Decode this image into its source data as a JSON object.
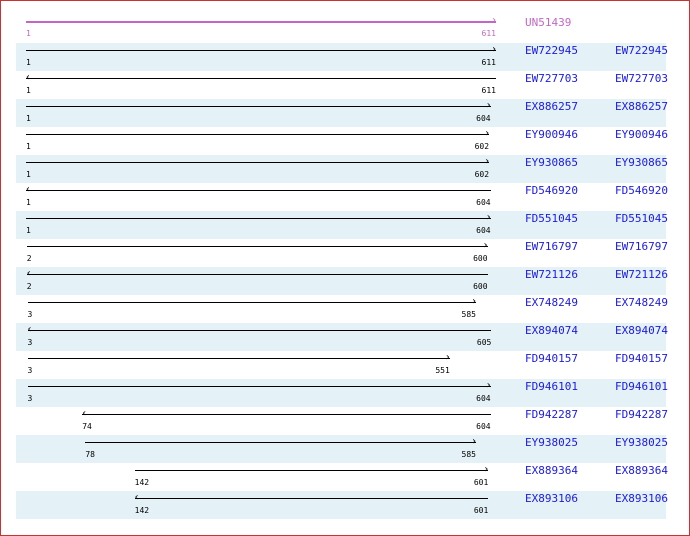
{
  "colors": {
    "query": "#c466c8",
    "link": "#1a1ae6",
    "shade": "#e4f1f6",
    "border": "#c83232"
  },
  "scale": {
    "min": 1,
    "max": 611
  },
  "query": {
    "name": "UN51439",
    "start": 1,
    "end": 611,
    "direction": "forward"
  },
  "hits": [
    {
      "name": "EW722945",
      "link": "EW722945",
      "start": 1,
      "end": 611,
      "direction": "forward"
    },
    {
      "name": "EW727703",
      "link": "EW727703",
      "start": 1,
      "end": 611,
      "direction": "reverse"
    },
    {
      "name": "EX886257",
      "link": "EX886257",
      "start": 1,
      "end": 604,
      "direction": "forward"
    },
    {
      "name": "EY900946",
      "link": "EY900946",
      "start": 1,
      "end": 602,
      "direction": "forward"
    },
    {
      "name": "EY930865",
      "link": "EY930865",
      "start": 1,
      "end": 602,
      "direction": "forward"
    },
    {
      "name": "FD546920",
      "link": "FD546920",
      "start": 1,
      "end": 604,
      "direction": "reverse"
    },
    {
      "name": "FD551045",
      "link": "FD551045",
      "start": 1,
      "end": 604,
      "direction": "forward"
    },
    {
      "name": "EW716797",
      "link": "EW716797",
      "start": 2,
      "end": 600,
      "direction": "forward"
    },
    {
      "name": "EW721126",
      "link": "EW721126",
      "start": 2,
      "end": 600,
      "direction": "reverse"
    },
    {
      "name": "EX748249",
      "link": "EX748249",
      "start": 3,
      "end": 585,
      "direction": "forward"
    },
    {
      "name": "EX894074",
      "link": "EX894074",
      "start": 3,
      "end": 605,
      "direction": "reverse"
    },
    {
      "name": "FD940157",
      "link": "FD940157",
      "start": 3,
      "end": 551,
      "direction": "forward"
    },
    {
      "name": "FD946101",
      "link": "FD946101",
      "start": 3,
      "end": 604,
      "direction": "forward"
    },
    {
      "name": "FD942287",
      "link": "FD942287",
      "start": 74,
      "end": 604,
      "direction": "reverse"
    },
    {
      "name": "EY938025",
      "link": "EY938025",
      "start": 78,
      "end": 585,
      "direction": "forward"
    },
    {
      "name": "EX889364",
      "link": "EX889364",
      "start": 142,
      "end": 601,
      "direction": "forward"
    },
    {
      "name": "EX893106",
      "link": "EX893106",
      "start": 142,
      "end": 601,
      "direction": "reverse"
    }
  ]
}
